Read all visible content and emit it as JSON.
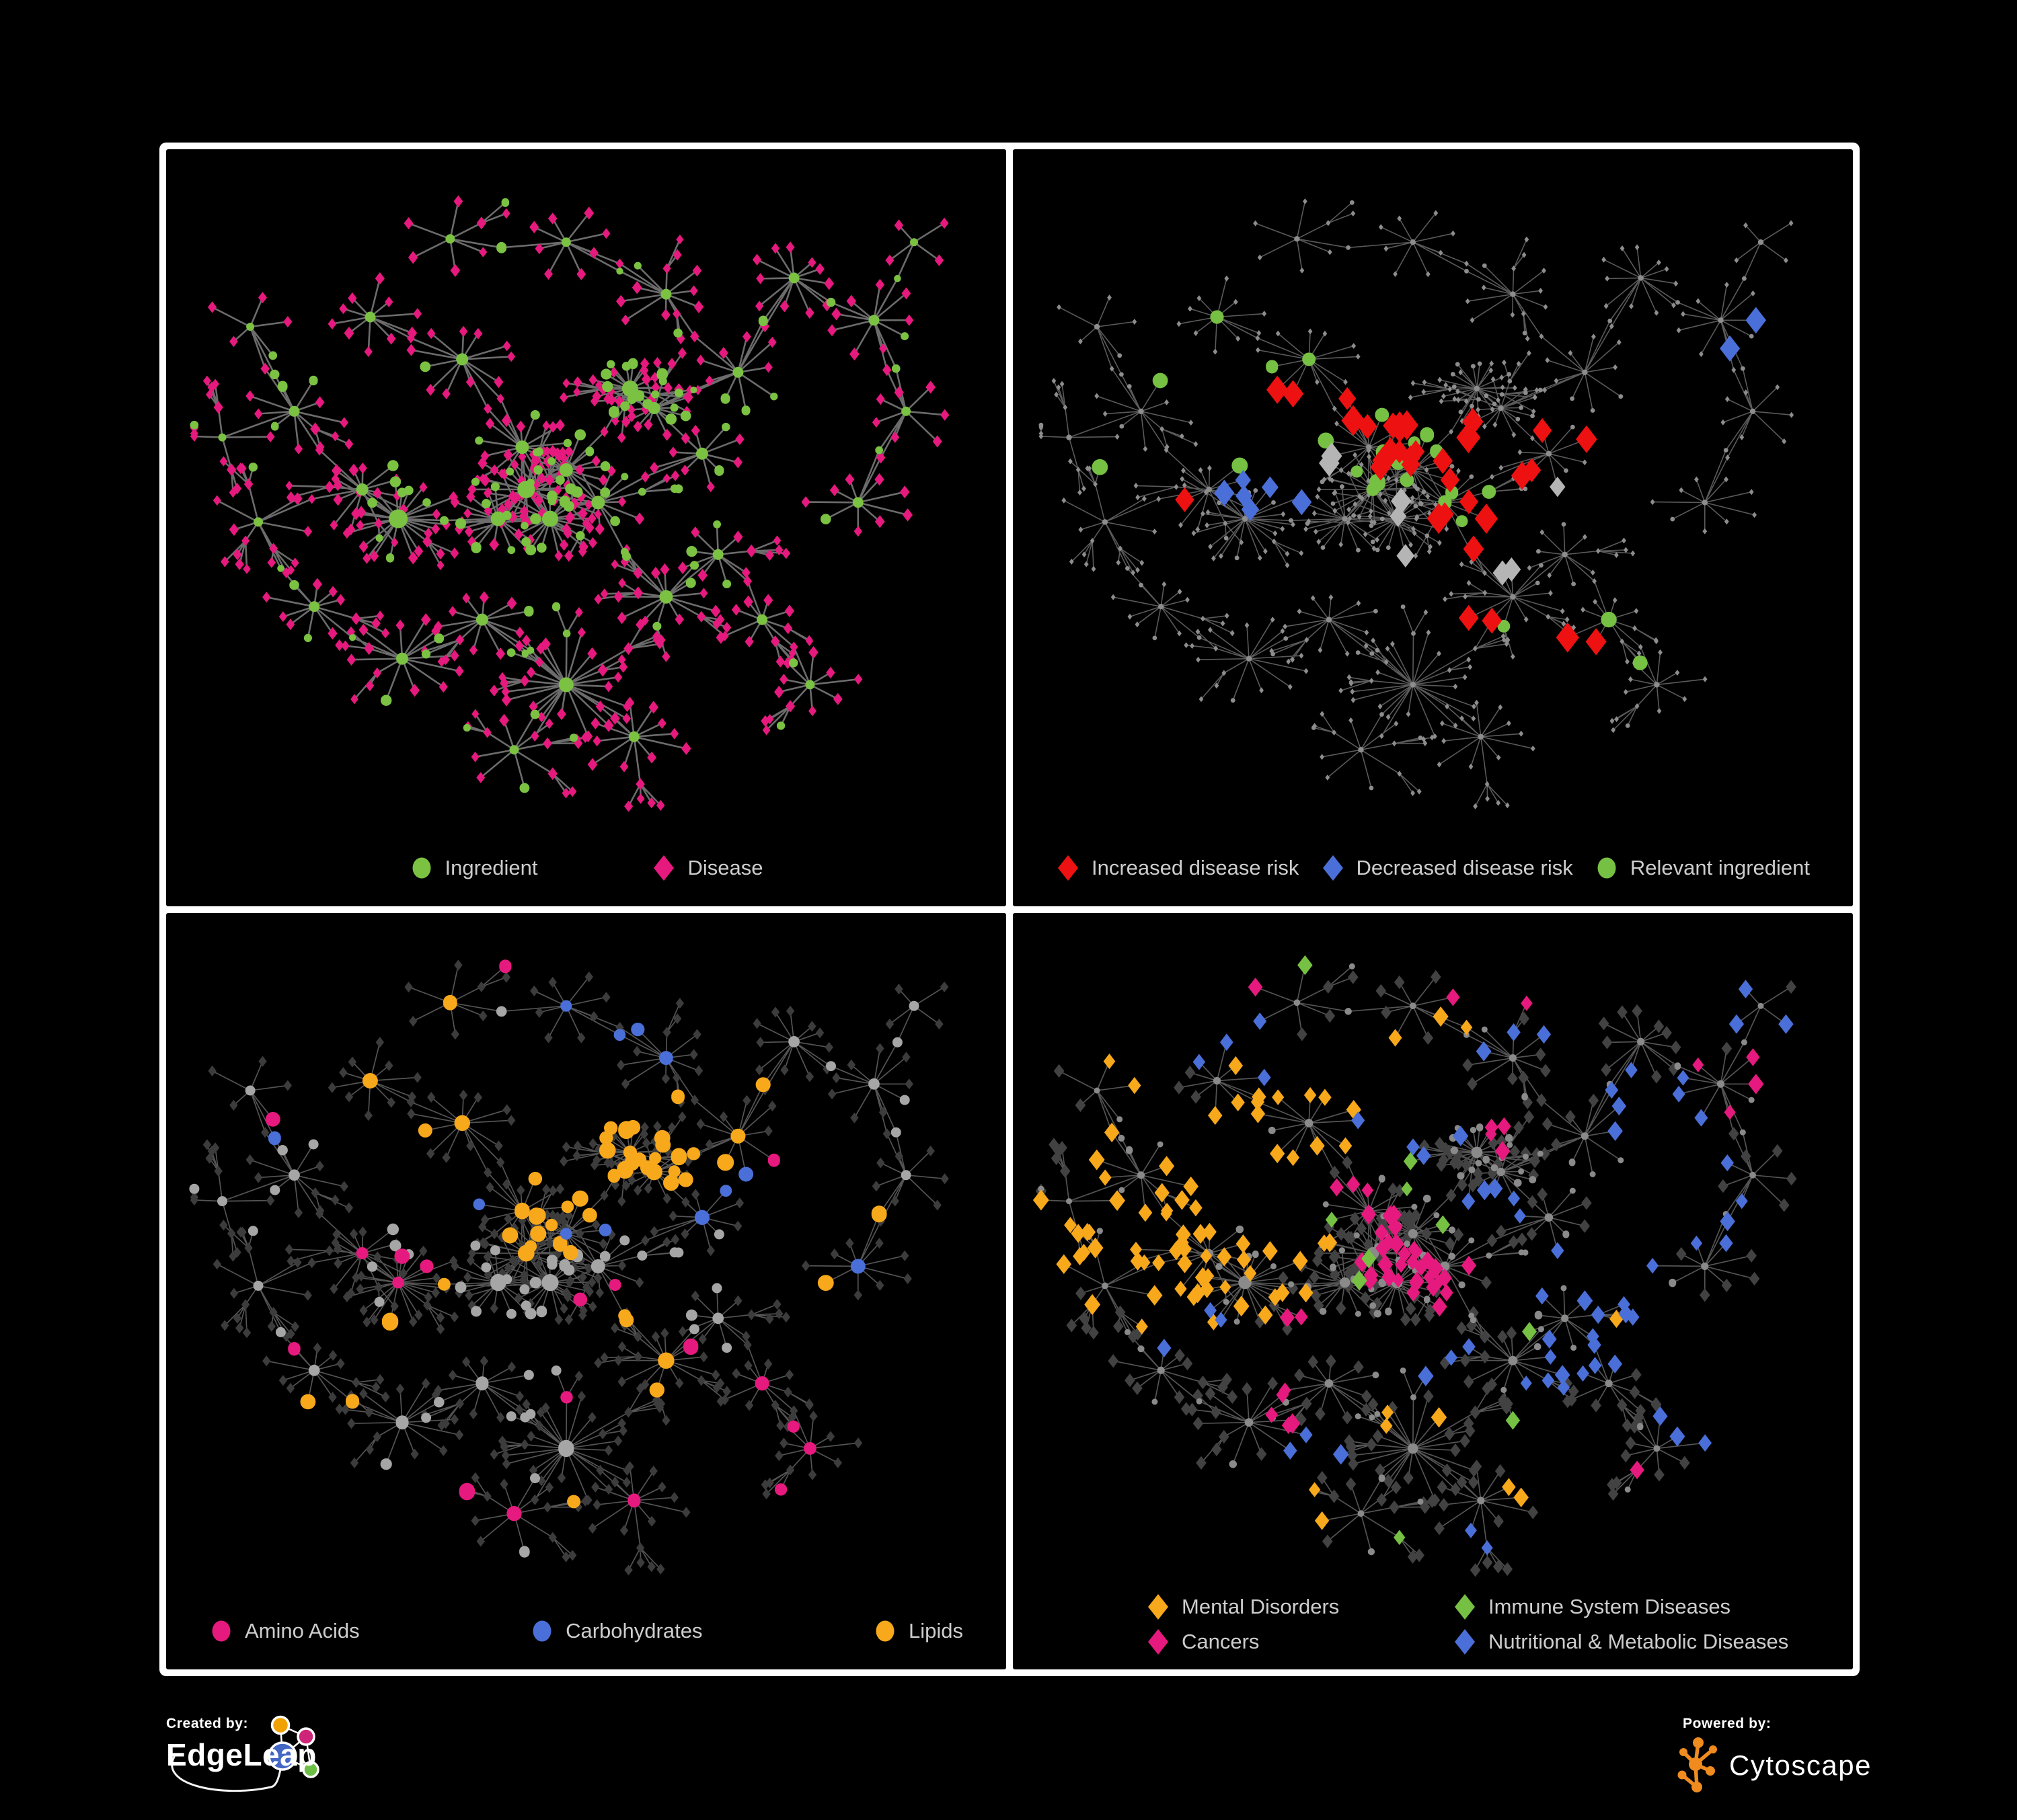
{
  "page": {
    "background": "#000000",
    "frame_color": "#ffffff",
    "panel_background": "#000000",
    "legend_text_color": "#cdcdcd"
  },
  "footer": {
    "created_by": "Created by:",
    "brand": "EdgeLeap",
    "powered_by": "Powered by:",
    "engine": "Cytoscape",
    "edgeleap_colors": {
      "blue": "#4467c4",
      "orange": "#f0a202",
      "pink": "#cf2579",
      "green": "#6dbf45"
    },
    "cytoscape_color": "#ef8b1f"
  },
  "network": {
    "seed": 42,
    "hubs": [
      [
        0.425,
        0.5,
        26,
        13,
        0.3,
        0.85
      ],
      [
        0.455,
        0.545,
        22,
        12,
        0.3,
        0.85
      ],
      [
        0.39,
        0.545,
        18,
        11,
        0.3,
        0.85
      ],
      [
        0.475,
        0.47,
        16,
        10,
        0.3,
        0.85
      ],
      [
        0.42,
        0.435,
        14,
        10,
        0.3,
        0.85
      ],
      [
        0.515,
        0.52,
        13,
        10,
        0.3,
        0.85
      ],
      [
        0.555,
        0.345,
        24,
        12,
        0.5,
        0.6
      ],
      [
        0.585,
        0.375,
        14,
        9,
        0.45,
        0.7
      ],
      [
        0.265,
        0.545,
        24,
        14,
        0.22,
        1.0
      ],
      [
        0.22,
        0.5,
        12,
        9,
        0.15,
        1.0
      ],
      [
        0.345,
        0.3,
        11,
        9,
        0.15,
        1.0
      ],
      [
        0.23,
        0.235,
        10,
        8,
        0.15,
        1.0
      ],
      [
        0.135,
        0.38,
        9,
        8,
        0.15,
        1.0
      ],
      [
        0.09,
        0.55,
        7,
        7,
        0.15,
        1.0
      ],
      [
        0.16,
        0.68,
        10,
        8,
        0.15,
        1.0
      ],
      [
        0.27,
        0.76,
        12,
        9,
        0.08,
        1.15
      ],
      [
        0.37,
        0.7,
        10,
        9,
        0.15,
        1.0
      ],
      [
        0.475,
        0.8,
        22,
        11,
        0.05,
        1.25
      ],
      [
        0.41,
        0.9,
        8,
        7,
        0.15,
        1.0
      ],
      [
        0.56,
        0.88,
        12,
        8,
        0.08,
        1.15
      ],
      [
        0.6,
        0.665,
        14,
        10,
        0.15,
        1.0
      ],
      [
        0.665,
        0.6,
        9,
        8,
        0.15,
        1.0
      ],
      [
        0.72,
        0.7,
        8,
        8,
        0.15,
        1.0
      ],
      [
        0.78,
        0.8,
        9,
        7,
        0.15,
        1.0
      ],
      [
        0.645,
        0.445,
        10,
        9,
        0.15,
        1.0
      ],
      [
        0.69,
        0.32,
        9,
        8,
        0.15,
        1.0
      ],
      [
        0.6,
        0.2,
        10,
        8,
        0.15,
        1.0
      ],
      [
        0.475,
        0.12,
        8,
        7,
        0.15,
        1.0
      ],
      [
        0.33,
        0.115,
        6,
        7,
        0.15,
        1.0
      ],
      [
        0.76,
        0.175,
        11,
        8,
        0.15,
        1.0
      ],
      [
        0.86,
        0.24,
        9,
        8,
        0.15,
        1.0
      ],
      [
        0.9,
        0.38,
        7,
        7,
        0.15,
        1.0
      ],
      [
        0.84,
        0.52,
        9,
        8,
        0.15,
        1.0
      ],
      [
        0.91,
        0.12,
        4,
        6,
        0.15,
        1.0
      ],
      [
        0.08,
        0.25,
        5,
        6,
        0.15,
        1.0
      ],
      [
        0.045,
        0.42,
        4,
        6,
        0.15,
        1.0
      ]
    ],
    "extra_links": [
      [
        4,
        10
      ],
      [
        5,
        24
      ],
      [
        25,
        29
      ],
      [
        30,
        31
      ],
      [
        20,
        21
      ],
      [
        16,
        17
      ],
      [
        12,
        34
      ],
      [
        7,
        25
      ],
      [
        26,
        27
      ],
      [
        31,
        32
      ]
    ]
  },
  "panels": [
    {
      "key": "ingredient-disease",
      "legend_layout": "center",
      "style": {
        "mode": "natural",
        "edge_color": "#757575",
        "edge_width": 2.6,
        "edge_opacity": 0.92,
        "circle_color": "#7bc142",
        "diamond_color": "#e6197e"
      },
      "legend": [
        {
          "shape": "circle",
          "color": "#7bc142",
          "label": "Ingredient"
        },
        {
          "shape": "diamond",
          "color": "#e6197e",
          "label": "Disease"
        }
      ],
      "highlights": []
    },
    {
      "key": "disease-risk",
      "legend_layout": "spread",
      "style": {
        "mode": "tiny",
        "edge_color": "#6a6a6a",
        "edge_width": 1.6,
        "edge_opacity": 0.85,
        "circle_color": "#8d8d8d",
        "diamond_color": "#8d8d8d"
      },
      "legend": [
        {
          "shape": "diamond",
          "color": "#ee1111",
          "label": "Increased disease risk"
        },
        {
          "shape": "diamond",
          "color": "#4a6fd8",
          "label": "Decreased disease risk"
        },
        {
          "shape": "circle",
          "color": "#76c043",
          "label": "Relevant ingredient"
        }
      ],
      "highlights": [
        {
          "shape": "diamond",
          "color": "#ee1111",
          "size": 15,
          "clusters": [
            [
              0.5,
              0.44,
              12,
              0.1
            ],
            [
              0.43,
              0.4,
              5,
              0.06
            ],
            [
              0.57,
              0.55,
              5,
              0.07
            ],
            [
              0.3,
              0.4,
              2,
              0.05
            ],
            [
              0.175,
              0.52,
              1,
              0.02
            ],
            [
              0.7,
              0.37,
              2,
              0.04
            ],
            [
              0.675,
              0.76,
              2,
              0.035
            ],
            [
              0.55,
              0.7,
              2,
              0.05
            ],
            [
              0.62,
              0.47,
              2,
              0.04
            ]
          ]
        },
        {
          "shape": "diamond",
          "color": "#4a6fd8",
          "size": 13.5,
          "clusters": [
            [
              0.285,
              0.5,
              6,
              0.055
            ],
            [
              0.87,
              0.255,
              2,
              0.02
            ]
          ]
        },
        {
          "shape": "diamond",
          "color": "#b5b5b5",
          "size": 13.5,
          "clusters": [
            [
              0.34,
              0.44,
              2,
              0.05
            ],
            [
              0.46,
              0.52,
              2,
              0.06
            ],
            [
              0.6,
              0.6,
              2,
              0.05
            ],
            [
              0.64,
              0.47,
              1,
              0.03
            ],
            [
              0.44,
              0.63,
              1,
              0.03
            ]
          ]
        },
        {
          "shape": "circle",
          "color": "#76c043",
          "size": 10,
          "clusters": [
            [
              0.45,
              0.43,
              11,
              0.12
            ],
            [
              0.33,
              0.37,
              4,
              0.07
            ],
            [
              0.56,
              0.52,
              4,
              0.07
            ],
            [
              0.665,
              0.75,
              3,
              0.035
            ],
            [
              0.25,
              0.3,
              2,
              0.05
            ],
            [
              0.08,
              0.5,
              1,
              0.02
            ]
          ]
        }
      ]
    },
    {
      "key": "nutrient-classes",
      "legend_layout": "spread",
      "style": {
        "mode": "p3",
        "edge_color": "#5d5d5d",
        "edge_width": 1.7,
        "edge_opacity": 0.9,
        "circle_color": "#a6a6a6",
        "diamond_color": "#3c3c3c"
      },
      "legend": [
        {
          "shape": "circle",
          "color": "#e6197e",
          "label": "Amino Acids"
        },
        {
          "shape": "circle",
          "color": "#4a6fd8",
          "label": "Carbohydrates"
        },
        {
          "shape": "circle",
          "color": "#f7a81b",
          "label": "Lipids"
        }
      ],
      "highlights": [
        {
          "shape": "circle",
          "color": "#f7a81b",
          "size": 10.5,
          "clusters": [
            [
              0.55,
              0.3,
              24,
              0.075
            ],
            [
              0.44,
              0.46,
              11,
              0.055
            ],
            [
              0.36,
              0.27,
              5,
              0.06
            ],
            [
              0.55,
              0.66,
              4,
              0.05
            ],
            [
              0.3,
              0.62,
              2,
              0.03
            ],
            [
              0.83,
              0.42,
              1,
              0.02
            ],
            [
              0.86,
              0.64,
              1,
              0.02
            ],
            [
              0.21,
              0.75,
              2,
              0.04
            ],
            [
              0.48,
              0.88,
              1,
              0.02
            ],
            [
              0.69,
              0.23,
              2,
              0.05
            ]
          ]
        },
        {
          "shape": "circle",
          "color": "#4a6fd8",
          "size": 10,
          "clusters": [
            [
              0.57,
              0.265,
              7,
              0.055
            ],
            [
              0.47,
              0.4,
              2,
              0.06
            ],
            [
              0.87,
              0.6,
              1,
              0.02
            ],
            [
              0.06,
              0.33,
              1,
              0.02
            ],
            [
              0.38,
              0.33,
              1,
              0.03
            ]
          ]
        },
        {
          "shape": "circle",
          "color": "#e6197e",
          "size": 10,
          "clusters": [
            [
              0.3,
              0.58,
              3,
              0.1
            ],
            [
              0.57,
              0.65,
              3,
              0.1
            ],
            [
              0.63,
              0.78,
              2,
              0.06
            ],
            [
              0.47,
              0.73,
              1,
              0.03
            ],
            [
              0.18,
              0.47,
              1,
              0.03
            ],
            [
              0.13,
              0.25,
              1,
              0.03
            ],
            [
              0.48,
              0.05,
              1,
              0.03
            ],
            [
              0.75,
              0.4,
              1,
              0.03
            ],
            [
              0.9,
              0.78,
              2,
              0.05
            ],
            [
              0.27,
              0.92,
              1,
              0.03
            ],
            [
              0.6,
              0.92,
              1,
              0.03
            ],
            [
              0.44,
              0.92,
              1,
              0.02
            ],
            [
              0.07,
              0.7,
              1,
              0.02
            ]
          ]
        }
      ]
    },
    {
      "key": "disease-classes",
      "legend_layout": "grid2",
      "style": {
        "mode": "p4",
        "edge_color": "#5d5d5d",
        "edge_width": 1.7,
        "edge_opacity": 0.9,
        "circle_color": "#8a8a8a",
        "diamond_color": "#424242"
      },
      "legend": [
        {
          "shape": "diamond",
          "color": "#f7a81b",
          "label": "Mental Disorders"
        },
        {
          "shape": "diamond",
          "color": "#76c043",
          "label": "Immune System Diseases"
        },
        {
          "shape": "diamond",
          "color": "#e6197e",
          "label": "Cancers"
        },
        {
          "shape": "diamond",
          "color": "#4a6fd8",
          "label": "Nutritional & Metabolic Diseases"
        }
      ],
      "highlights": [
        {
          "shape": "diamond",
          "color": "#f7a81b",
          "size": 10,
          "clusters": [
            [
              0.2,
              0.44,
              60,
              0.085
            ],
            [
              0.3,
              0.3,
              8,
              0.09
            ],
            [
              0.38,
              0.23,
              4,
              0.05
            ],
            [
              0.12,
              0.12,
              2,
              0.04
            ],
            [
              0.48,
              0.78,
              3,
              0.06
            ],
            [
              0.6,
              0.85,
              2,
              0.04
            ],
            [
              0.33,
              0.9,
              2,
              0.03
            ],
            [
              0.72,
              0.62,
              1,
              0.02
            ],
            [
              0.55,
              0.12,
              2,
              0.05
            ]
          ]
        },
        {
          "shape": "diamond",
          "color": "#e6197e",
          "size": 10,
          "clusters": [
            [
              0.48,
              0.52,
              30,
              0.075
            ],
            [
              0.42,
              0.42,
              6,
              0.05
            ],
            [
              0.56,
              0.33,
              4,
              0.06
            ],
            [
              0.3,
              0.74,
              5,
              0.06
            ],
            [
              0.9,
              0.25,
              4,
              0.035
            ],
            [
              0.33,
              0.6,
              2,
              0.04
            ],
            [
              0.75,
              0.85,
              1,
              0.02
            ],
            [
              0.6,
              0.05,
              2,
              0.04
            ],
            [
              0.25,
              0.05,
              1,
              0.02
            ]
          ]
        },
        {
          "shape": "diamond",
          "color": "#4a6fd8",
          "size": 10,
          "clusters": [
            [
              0.7,
              0.57,
              13,
              0.055
            ],
            [
              0.78,
              0.32,
              8,
              0.07
            ],
            [
              0.84,
              0.46,
              4,
              0.05
            ],
            [
              0.64,
              0.68,
              6,
              0.05
            ],
            [
              0.58,
              0.42,
              5,
              0.1
            ],
            [
              0.45,
              0.3,
              4,
              0.1
            ],
            [
              0.25,
              0.18,
              4,
              0.07
            ],
            [
              0.2,
              0.6,
              3,
              0.08
            ],
            [
              0.35,
              0.78,
              3,
              0.06
            ],
            [
              0.9,
              0.12,
              3,
              0.05
            ],
            [
              0.6,
              0.18,
              3,
              0.07
            ],
            [
              0.5,
              0.65,
              3,
              0.05
            ],
            [
              0.88,
              0.68,
              2,
              0.04
            ],
            [
              0.55,
              0.92,
              2,
              0.04
            ],
            [
              0.93,
              0.8,
              1,
              0.02
            ]
          ]
        },
        {
          "shape": "diamond",
          "color": "#76c043",
          "size": 10,
          "clusters": [
            [
              0.44,
              0.38,
              2,
              0.06
            ],
            [
              0.4,
              0.52,
              2,
              0.06
            ],
            [
              0.52,
              0.45,
              1,
              0.04
            ],
            [
              0.3,
              0.45,
              1,
              0.03
            ],
            [
              0.64,
              0.57,
              1,
              0.03
            ],
            [
              0.28,
              0.1,
              1,
              0.02
            ],
            [
              0.47,
              0.93,
              1,
              0.02
            ],
            [
              0.6,
              0.75,
              1,
              0.03
            ]
          ]
        }
      ]
    }
  ]
}
